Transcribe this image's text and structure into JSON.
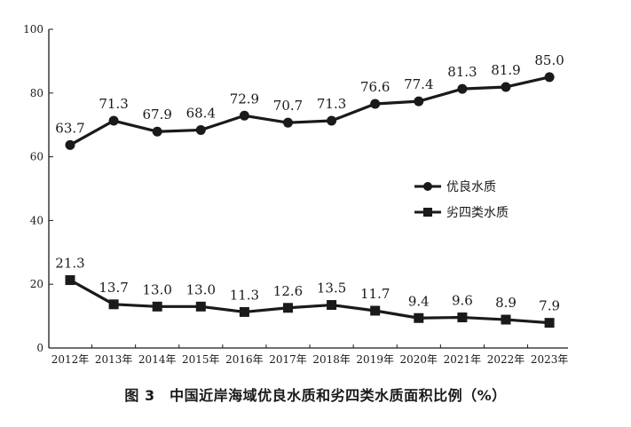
{
  "caption": "图 3　中国近岸海域优良水质和劣四类水质面积比例（%）",
  "chart_data": {
    "type": "line",
    "title": "",
    "xlabel": "",
    "ylabel": "",
    "ylim": [
      0,
      100
    ],
    "yticks": [
      0,
      20,
      40,
      60,
      80,
      100
    ],
    "grid": false,
    "legend_position": "right",
    "categories": [
      "2012年",
      "2013年",
      "2014年",
      "2015年",
      "2016年",
      "2017年",
      "2018年",
      "2019年",
      "2020年",
      "2021年",
      "2022年",
      "2023年"
    ],
    "series": [
      {
        "name": "优良水质",
        "marker": "circle",
        "color": "#1a1a1a",
        "values": [
          63.7,
          71.3,
          67.9,
          68.4,
          72.9,
          70.7,
          71.3,
          76.6,
          77.4,
          81.3,
          81.9,
          85.0
        ],
        "labels": [
          "63.7",
          "71.3",
          "67.9",
          "68.4",
          "72.9",
          "70.7",
          "71.3",
          "76.6",
          "77.4",
          "81.3",
          "81.9",
          "85.0"
        ]
      },
      {
        "name": "劣四类水质",
        "marker": "square",
        "color": "#1a1a1a",
        "values": [
          21.3,
          13.7,
          13.0,
          13.0,
          11.3,
          12.6,
          13.5,
          11.7,
          9.4,
          9.6,
          8.9,
          7.9
        ],
        "labels": [
          "21.3",
          "13.7",
          "13.0",
          "13.0",
          "11.3",
          "12.6",
          "13.5",
          "11.7",
          "9.4",
          "9.6",
          "8.9",
          "7.9"
        ]
      }
    ]
  }
}
